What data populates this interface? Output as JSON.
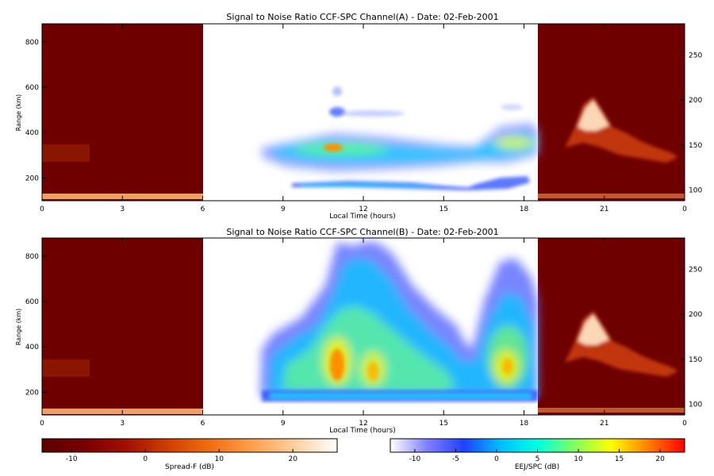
{
  "chart_data": [
    {
      "type": "heatmap",
      "title": "Signal to Noise Ratio CCF-SPC Channel(A) - Date: 02-Feb-2001",
      "xlabel": "Local Time (hours)",
      "ylabel": "Range (km)",
      "xticks": [
        {
          "label": "0",
          "hour": 0
        },
        {
          "label": "3",
          "hour": 3
        },
        {
          "label": "6",
          "hour": 6
        },
        {
          "label": "9",
          "hour": 9
        },
        {
          "label": "12",
          "hour": 12
        },
        {
          "label": "15",
          "hour": 15
        },
        {
          "label": "18",
          "hour": 18
        },
        {
          "label": "21",
          "hour": 21
        },
        {
          "label": "0",
          "hour": 24
        }
      ],
      "yticks": [
        "200",
        "400",
        "600",
        "800"
      ],
      "y_right_ticks": [
        "100",
        "150",
        "200",
        "250"
      ],
      "ylim": [
        100,
        880
      ],
      "y_right_lim": [
        88,
        285
      ],
      "regions": [
        {
          "kind": "Spread-F",
          "hours": [
            0,
            6
          ]
        },
        {
          "kind": "EEJ/SPC",
          "hours": [
            6,
            18.5
          ]
        },
        {
          "kind": "Spread-F",
          "hours": [
            18.5,
            24
          ]
        }
      ],
      "features": [
        {
          "hours": [
            8.0,
            18.6
          ],
          "range_km": [
            270,
            400
          ],
          "peak_db": 18
        },
        {
          "hours": [
            10.2,
            11.8
          ],
          "range_km": [
            280,
            360
          ],
          "peak_db": 15
        },
        {
          "hours": [
            9.5,
            18.0
          ],
          "range_km": [
            150,
            195
          ],
          "peak_db": 2
        }
      ]
    },
    {
      "type": "heatmap",
      "title": "Signal to Noise Ratio CCF-SPC Channel(B) - Date: 02-Feb-2001",
      "xlabel": "Local Time (hours)",
      "ylabel": "Range (km)",
      "xticks": [
        {
          "label": "0",
          "hour": 0
        },
        {
          "label": "3",
          "hour": 3
        },
        {
          "label": "6",
          "hour": 6
        },
        {
          "label": "9",
          "hour": 9
        },
        {
          "label": "12",
          "hour": 12
        },
        {
          "label": "15",
          "hour": 15
        },
        {
          "label": "18",
          "hour": 18
        },
        {
          "label": "21",
          "hour": 21
        },
        {
          "label": "0",
          "hour": 24
        }
      ],
      "yticks": [
        "200",
        "400",
        "600",
        "800"
      ],
      "y_right_ticks": [
        "100",
        "150",
        "200",
        "250"
      ],
      "ylim": [
        100,
        880
      ],
      "y_right_lim": [
        88,
        285
      ],
      "regions": [
        {
          "kind": "Spread-F",
          "hours": [
            0,
            6
          ]
        },
        {
          "kind": "EEJ/SPC",
          "hours": [
            6,
            18.5
          ]
        },
        {
          "kind": "Spread-F",
          "hours": [
            18.5,
            24
          ]
        }
      ],
      "features": [
        {
          "hours": [
            8.2,
            16.0
          ],
          "range_km": [
            160,
            880
          ],
          "peak_db": 15
        },
        {
          "hours": [
            10.5,
            11.5
          ],
          "range_km": [
            250,
            380
          ],
          "peak_db": 16
        },
        {
          "hours": [
            16.2,
            18.5
          ],
          "range_km": [
            160,
            740
          ],
          "peak_db": 12
        }
      ]
    }
  ],
  "colorbars": [
    {
      "label": "Spread-F (dB)",
      "ticks": [
        "-10",
        "0",
        "10",
        "20"
      ],
      "range_db": [
        -14,
        26
      ],
      "colors": [
        "#5c0000",
        "#7a0000",
        "#a01000",
        "#d04000",
        "#f07010",
        "#ffa050",
        "#ffd0a0",
        "#ffffff"
      ]
    },
    {
      "label": "EEJ/SPC (dB)",
      "ticks": [
        "-10",
        "-5",
        "0",
        "5",
        "10",
        "15",
        "20"
      ],
      "range_db": [
        -13,
        23
      ],
      "colors": [
        "#ffffff",
        "#8080ff",
        "#2040ff",
        "#00c0ff",
        "#00ffe0",
        "#80ff60",
        "#ffff00",
        "#ff8000",
        "#ff0000"
      ]
    }
  ]
}
